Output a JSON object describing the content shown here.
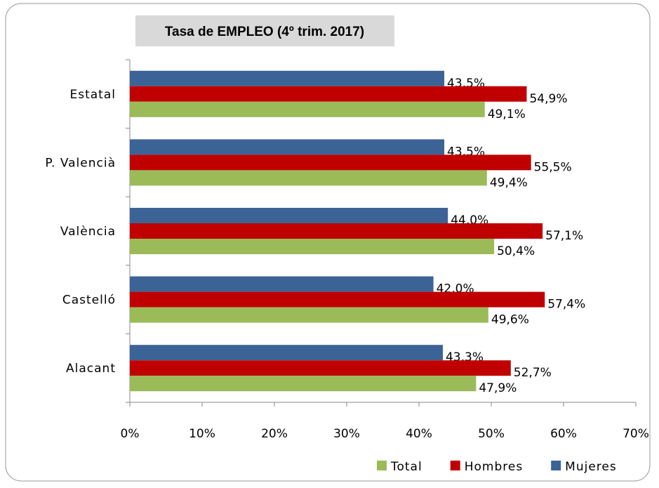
{
  "chart_data": {
    "type": "hbar",
    "title": "Tasa de EMPLEO (4º trim. 2017)",
    "categories": [
      "Estatal",
      "P. Valencià",
      "València",
      "Castelló",
      "Alacant"
    ],
    "series": [
      {
        "name": "Mujeres",
        "color": "#3c6396",
        "values": [
          43.5,
          43.5,
          44.0,
          42.0,
          43.3
        ],
        "value_labels": [
          "43,5%",
          "43,5%",
          "44,0%",
          "42,0%",
          "43,3%"
        ]
      },
      {
        "name": "Hombres",
        "color": "#c00000",
        "values": [
          54.9,
          55.5,
          57.1,
          57.4,
          52.7
        ],
        "value_labels": [
          "54,9%",
          "55,5%",
          "57,1%",
          "57,4%",
          "52,7%"
        ]
      },
      {
        "name": "Total",
        "color": "#9bbb59",
        "values": [
          49.1,
          49.4,
          50.4,
          49.6,
          47.9
        ],
        "value_labels": [
          "49,1%",
          "49,4%",
          "50,4%",
          "49,6%",
          "47,9%"
        ]
      }
    ],
    "xlim": [
      0,
      70
    ],
    "xticks": [
      {
        "value": 0,
        "label": "0%"
      },
      {
        "value": 10,
        "label": "10%"
      },
      {
        "value": 20,
        "label": "20%"
      },
      {
        "value": 30,
        "label": "30%"
      },
      {
        "value": 40,
        "label": "40%"
      },
      {
        "value": 50,
        "label": "50%"
      },
      {
        "value": 60,
        "label": "60%"
      },
      {
        "value": 70,
        "label": "70%"
      }
    ],
    "legend": "bottom-right"
  }
}
